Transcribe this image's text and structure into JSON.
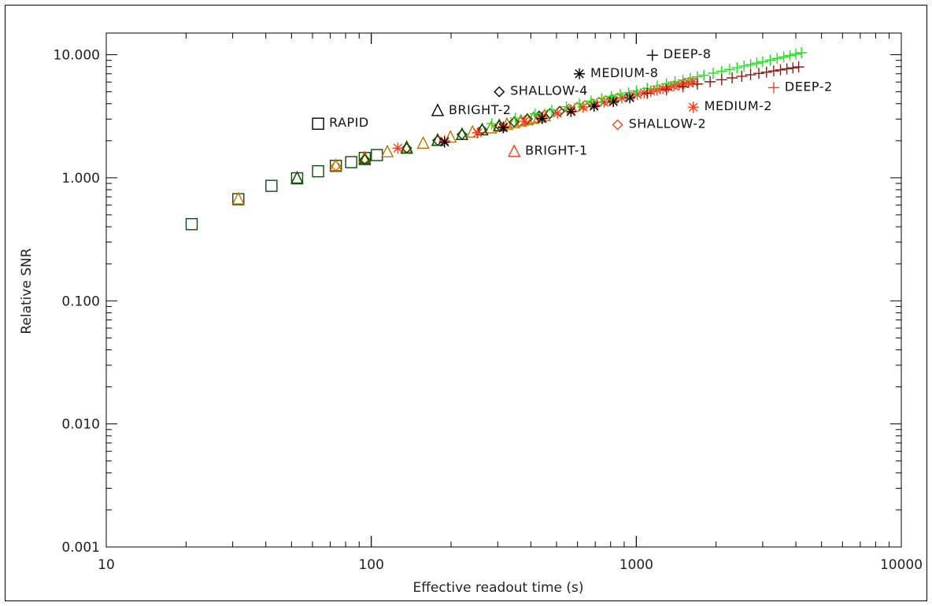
{
  "chart_data": {
    "type": "scatter",
    "title": "",
    "xlabel": "Effective readout time (s)",
    "ylabel": "Relative SNR",
    "xscale": "log",
    "yscale": "log",
    "xlim": [
      10,
      10000
    ],
    "ylim": [
      0.001,
      15
    ],
    "xticks": [
      "10",
      "100",
      "1000",
      "10000"
    ],
    "xtick_values": [
      10,
      100,
      1000,
      10000
    ],
    "yticks": [
      "0.001",
      "0.010",
      "0.100",
      "1.000",
      "10.000"
    ],
    "ytick_values": [
      0.001,
      0.01,
      0.1,
      1,
      10
    ],
    "grid": false,
    "legend": "none (series labelled directly on plot)",
    "colors": {
      "black": "#000000",
      "dark_green": "#0b4a0b",
      "green": "#22dd22",
      "red": "#ff3a1a",
      "dark_red": "#8b1a10",
      "orange": "#c07000"
    },
    "series": [
      {
        "marker": "square",
        "color": "#0b4a0b",
        "x": [
          21,
          31.5,
          42,
          52.5,
          63,
          73.5,
          84,
          94.5,
          105
        ],
        "y": [
          0.42,
          0.67,
          0.86,
          0.99,
          1.13,
          1.25,
          1.34,
          1.45,
          1.53
        ]
      },
      {
        "marker": "triangle",
        "color": "#c07000",
        "x": [
          31.5,
          52.5,
          73.5,
          94.5,
          115,
          136,
          157,
          178,
          199,
          220,
          241,
          262,
          283,
          304,
          325,
          346,
          367,
          388,
          409,
          430,
          451
        ],
        "y": [
          0.67,
          0.99,
          1.25,
          1.45,
          1.62,
          1.77,
          1.9,
          2.02,
          2.13,
          2.24,
          2.34,
          2.44,
          2.53,
          2.62,
          2.71,
          2.79,
          2.88,
          2.95,
          3.03,
          3.1,
          3.18
        ]
      },
      {
        "marker": "triangle",
        "color": "#0b4a0b",
        "x": [
          52.5,
          94.5,
          136,
          178,
          220,
          262,
          304
        ],
        "y": [
          0.99,
          1.4,
          1.73,
          2.0,
          2.24,
          2.44,
          2.64
        ]
      },
      {
        "marker": "diamond",
        "color": "#c08000",
        "x": [
          73.5,
          94.5,
          136,
          178,
          220,
          262,
          304,
          346,
          388,
          430,
          472,
          514,
          556,
          598,
          640,
          682,
          724,
          766,
          808,
          850
        ],
        "y": [
          1.25,
          1.42,
          1.74,
          2.01,
          2.25,
          2.46,
          2.66,
          2.84,
          3.01,
          3.17,
          3.33,
          3.47,
          3.62,
          3.75,
          3.88,
          4.0,
          4.12,
          4.24,
          4.36,
          4.47
        ]
      },
      {
        "marker": "diamond",
        "color": "#0b4a0b",
        "x": [
          94.5,
          136,
          178,
          220,
          262,
          304,
          346,
          388,
          430,
          472,
          514
        ],
        "y": [
          1.4,
          1.74,
          2.01,
          2.25,
          2.46,
          2.66,
          2.84,
          3.01,
          3.17,
          3.33,
          3.47
        ]
      },
      {
        "marker": "asterisk",
        "color": "#ff3a1a",
        "x": [
          126,
          189,
          252,
          315,
          378,
          441,
          504,
          567,
          630,
          693,
          756,
          819,
          882,
          945,
          1008,
          1071,
          1134,
          1197,
          1260,
          1323,
          1386,
          1449,
          1512,
          1575,
          1638
        ],
        "y": [
          1.74,
          2.0,
          2.32,
          2.61,
          2.88,
          3.12,
          3.35,
          3.56,
          3.76,
          3.94,
          4.12,
          4.29,
          4.46,
          4.61,
          4.76,
          4.91,
          5.05,
          5.18,
          5.31,
          5.44,
          5.57,
          5.69,
          5.81,
          5.92,
          6.03
        ]
      },
      {
        "marker": "asterisk",
        "color": "#000000",
        "x": [
          189,
          315,
          441,
          567,
          693,
          819,
          945
        ],
        "y": [
          1.95,
          2.55,
          3.03,
          3.45,
          3.82,
          4.16,
          4.47
        ]
      },
      {
        "marker": "plus",
        "color": "#22dd22",
        "x": [
          285,
          350,
          415,
          480,
          545,
          610,
          675,
          740,
          805,
          870,
          935,
          1000,
          1100,
          1200,
          1300,
          1400,
          1500,
          1600,
          1700,
          1800,
          1950,
          2100,
          2250,
          2400,
          2550,
          2700,
          2850,
          3000,
          3200,
          3400,
          3600,
          3800,
          4000,
          4200
        ],
        "y": [
          2.75,
          3.05,
          3.3,
          3.55,
          3.78,
          3.99,
          4.2,
          4.39,
          4.58,
          4.75,
          4.92,
          5.08,
          5.33,
          5.57,
          5.8,
          6.02,
          6.23,
          6.43,
          6.62,
          6.81,
          7.08,
          7.35,
          7.6,
          7.85,
          8.09,
          8.32,
          8.55,
          8.77,
          9.05,
          9.33,
          9.6,
          9.86,
          10.12,
          10.36
        ]
      },
      {
        "marker": "plus",
        "color": "#8b1a10",
        "x": [
          1100,
          1300,
          1500,
          1700,
          1900,
          2100,
          2300,
          2500,
          2700,
          2900,
          3100,
          3300,
          3500,
          3700,
          3900,
          4100
        ],
        "y": [
          4.85,
          5.2,
          5.5,
          5.78,
          6.03,
          6.26,
          6.48,
          6.68,
          6.87,
          7.05,
          7.22,
          7.38,
          7.53,
          7.68,
          7.82,
          7.95
        ]
      }
    ],
    "annotations": [
      {
        "text": "RAPID",
        "x": 63,
        "y": 2.75,
        "marker": "square",
        "color": "#000000"
      },
      {
        "text": "BRIGHT-2",
        "x": 178,
        "y": 3.5,
        "marker": "triangle",
        "color": "#000000"
      },
      {
        "text": "SHALLOW-4",
        "x": 304,
        "y": 5.0,
        "marker": "diamond",
        "color": "#000000"
      },
      {
        "text": "MEDIUM-8",
        "x": 610,
        "y": 7.0,
        "marker": "asterisk",
        "color": "#000000"
      },
      {
        "text": "DEEP-8",
        "x": 1150,
        "y": 9.9,
        "marker": "plus",
        "color": "#000000"
      },
      {
        "text": "BRIGHT-1",
        "x": 346,
        "y": 1.63,
        "marker": "triangle",
        "color": "#ff3a1a"
      },
      {
        "text": "SHALLOW-2",
        "x": 850,
        "y": 2.7,
        "marker": "diamond",
        "color": "#e05020"
      },
      {
        "text": "MEDIUM-2",
        "x": 1640,
        "y": 3.75,
        "marker": "asterisk",
        "color": "#ff3a1a"
      },
      {
        "text": "DEEP-2",
        "x": 3300,
        "y": 5.4,
        "marker": "plus",
        "color": "#ff3a1a"
      }
    ]
  }
}
